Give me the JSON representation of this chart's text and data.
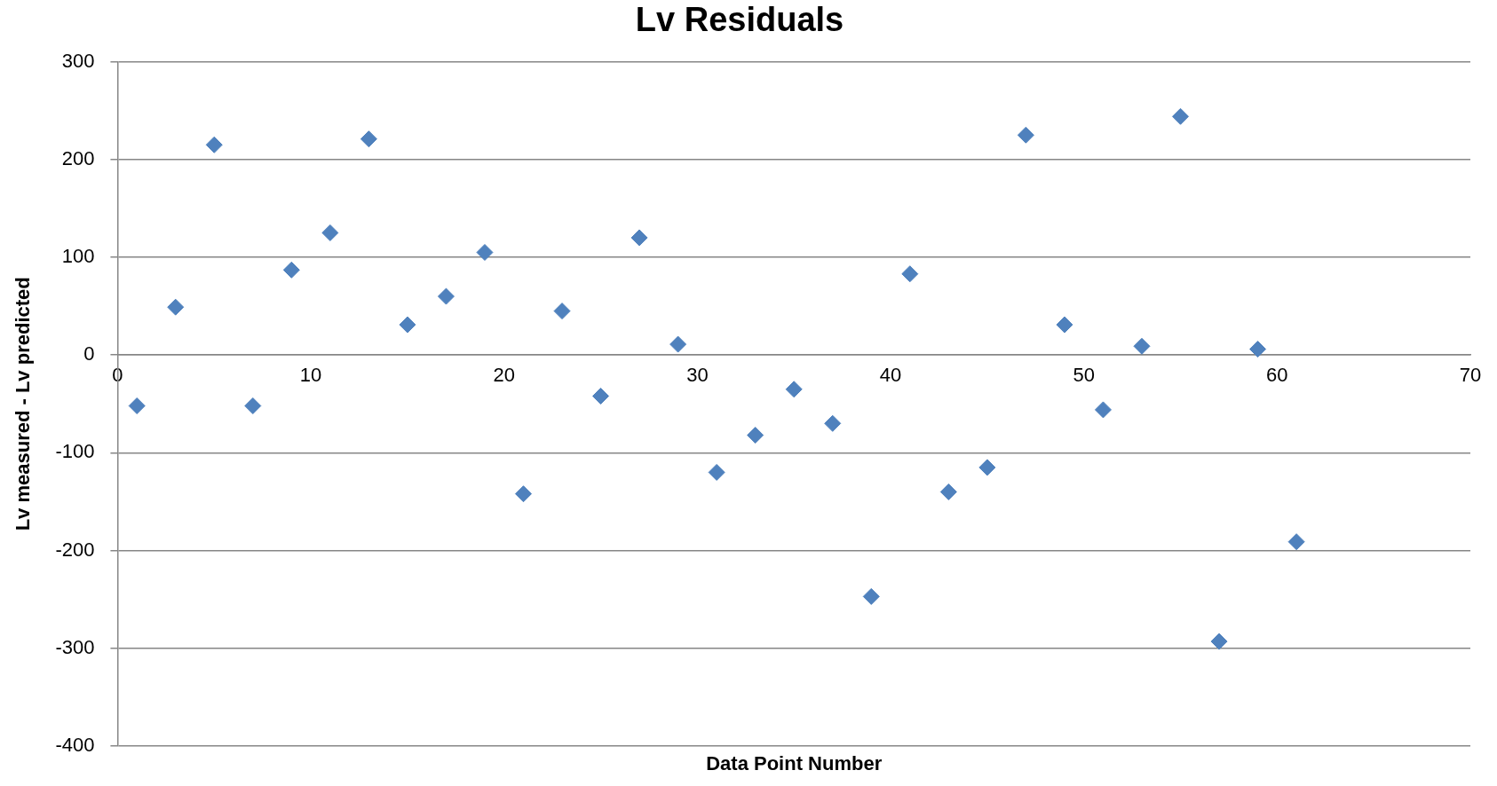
{
  "chart_data": {
    "type": "scatter",
    "title": "Lv Residuals",
    "xlabel": "Data Point Number",
    "ylabel": "Lv measured - Lv predicted",
    "x": [
      1,
      3,
      5,
      7,
      9,
      11,
      13,
      15,
      17,
      19,
      21,
      23,
      25,
      27,
      29,
      31,
      33,
      35,
      37,
      39,
      41,
      43,
      45,
      47,
      49,
      51,
      53,
      55,
      57,
      59,
      61
    ],
    "series": [
      {
        "color": "#4f81bd",
        "values": [
          -52,
          49,
          215,
          -52,
          87,
          125,
          221,
          31,
          60,
          105,
          -142,
          45,
          -42,
          120,
          11,
          -120,
          -82,
          -35,
          -70,
          -247,
          83,
          -140,
          -115,
          225,
          31,
          -56,
          9,
          244,
          -293,
          6,
          -191
        ]
      }
    ],
    "xlim": [
      0,
      70
    ],
    "xticks": [
      0,
      10,
      20,
      30,
      40,
      50,
      60,
      70
    ],
    "ylim": [
      -400,
      300
    ],
    "yticks": [
      -400,
      -300,
      -200,
      -100,
      0,
      100,
      200,
      300
    ],
    "grid": "y",
    "legend": false,
    "marker": "diamond"
  }
}
